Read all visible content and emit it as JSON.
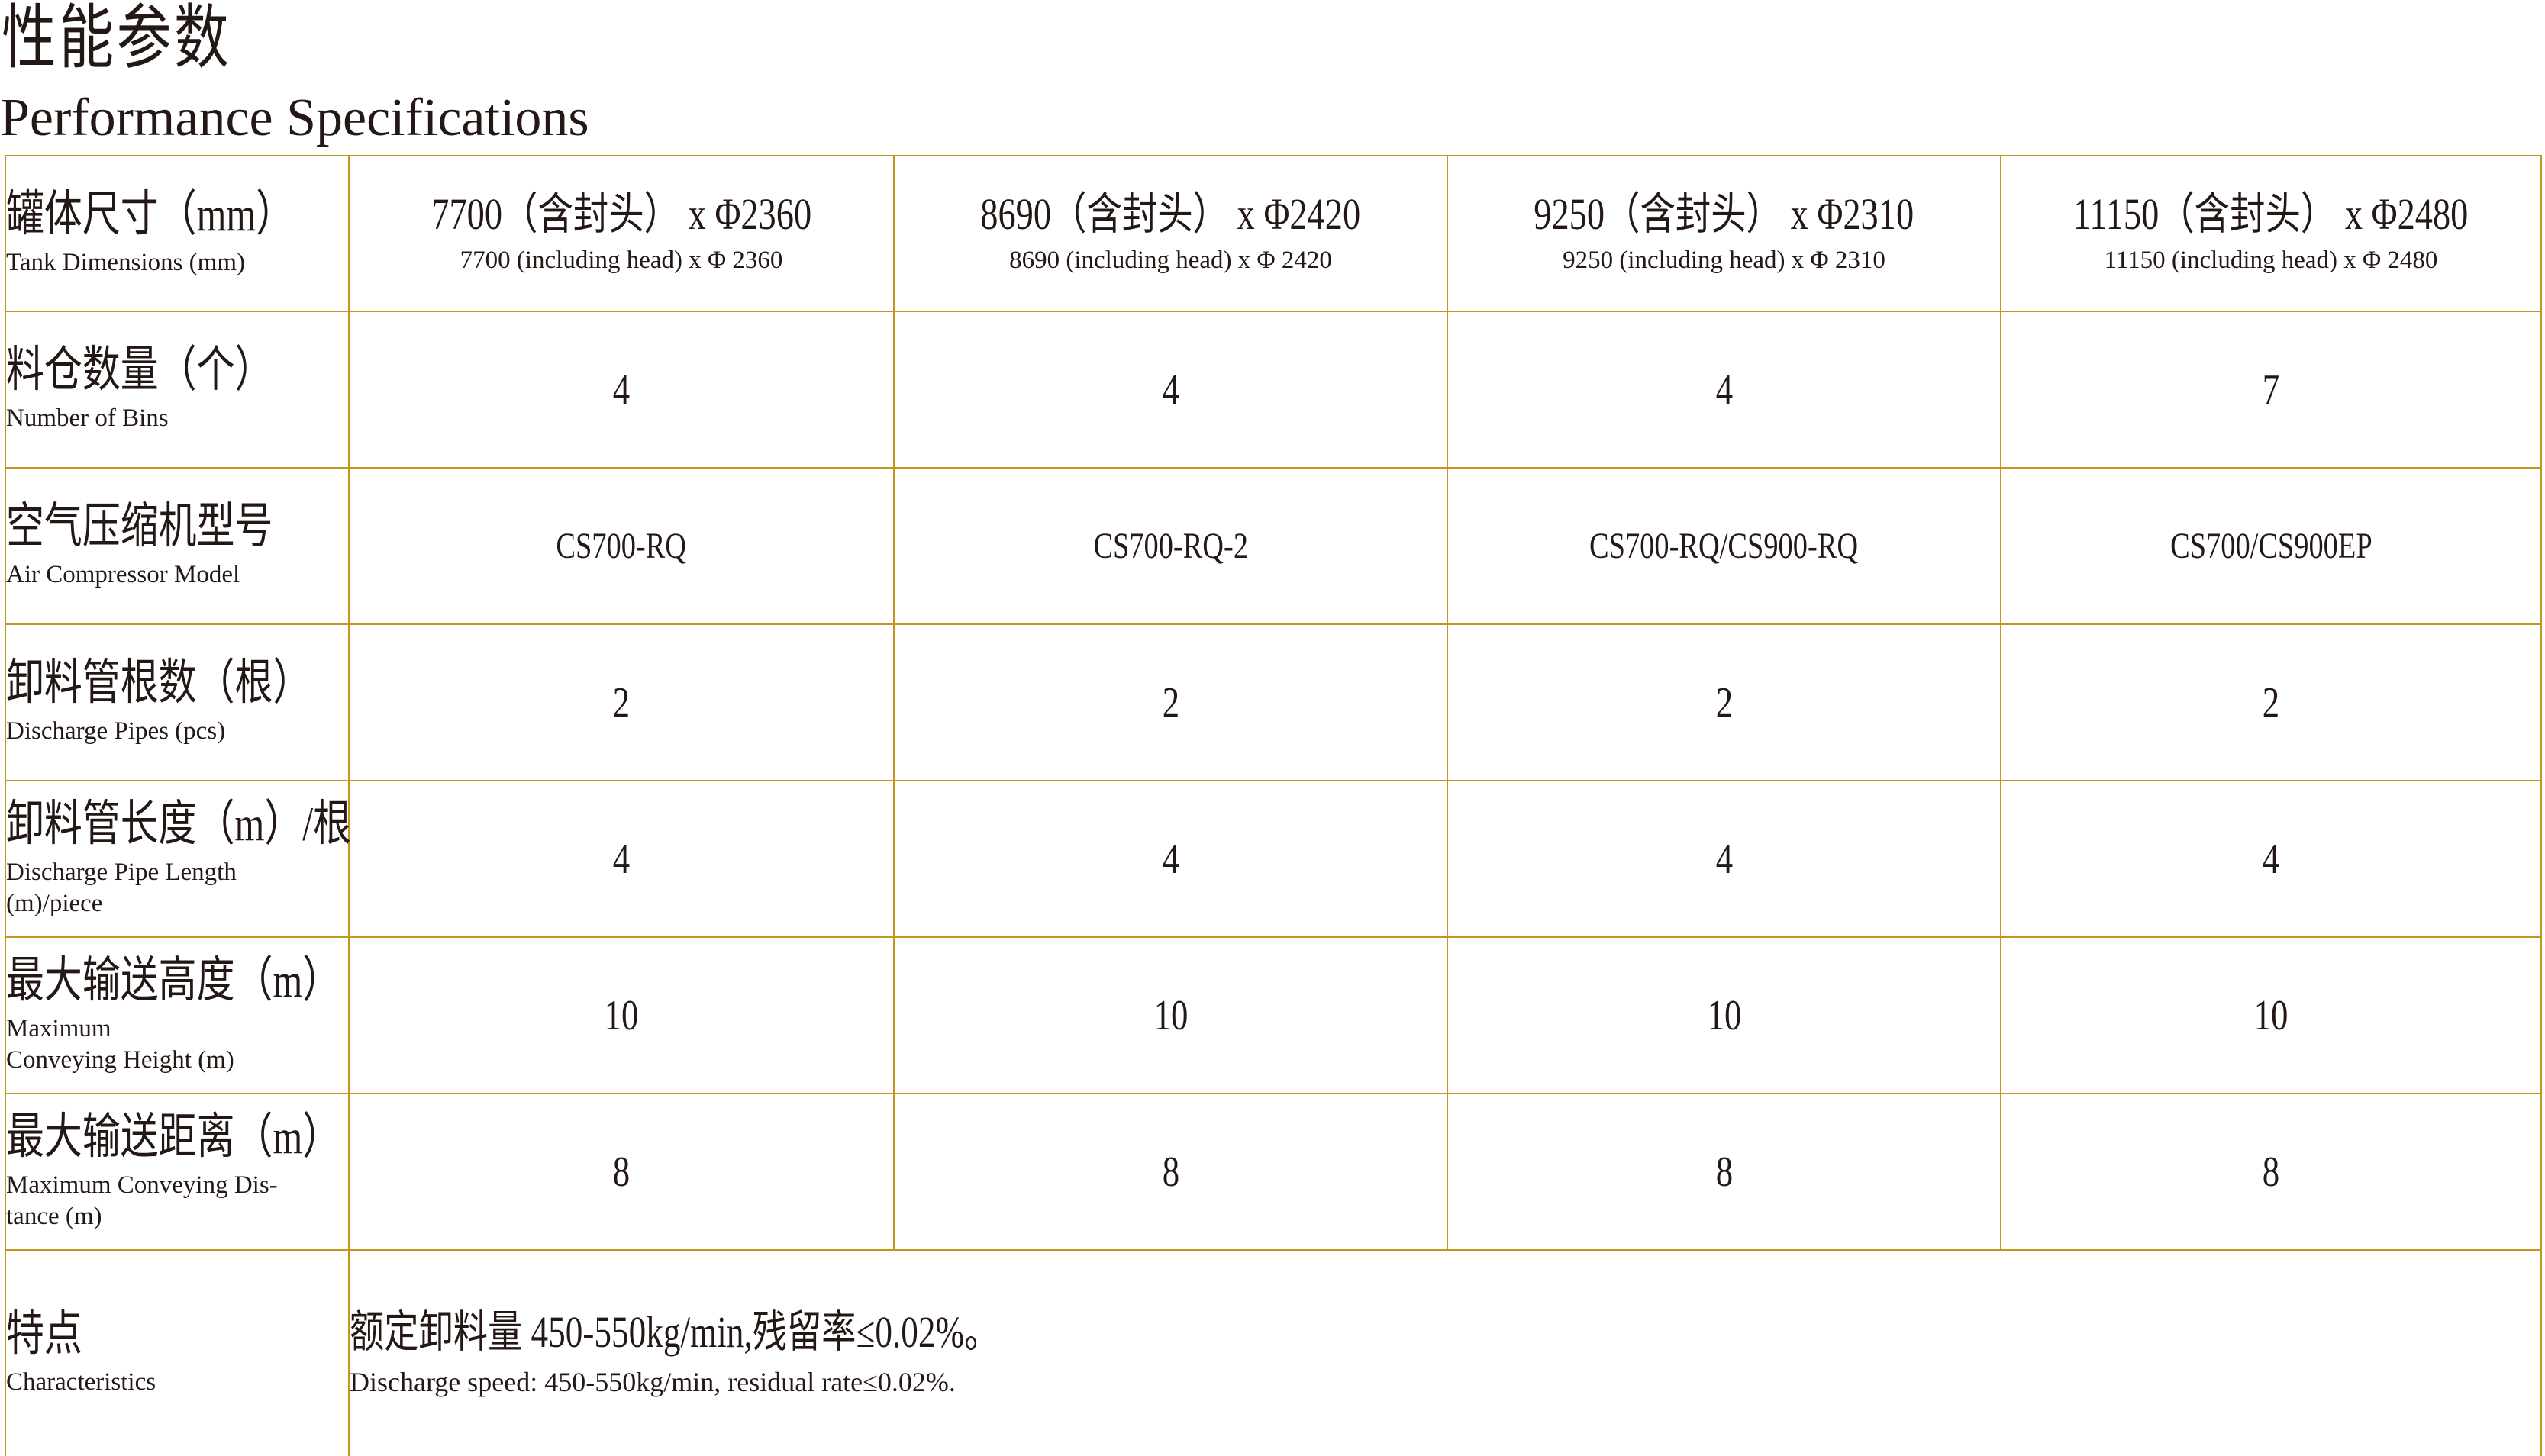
{
  "page": {
    "title_cn": "性能参数",
    "title_en": "Performance Specifications"
  },
  "colors": {
    "border": "#C6951E",
    "text": "#231815"
  },
  "table": {
    "rows": [
      {
        "label_cn": "罐体尺寸（mm）",
        "label_en": "Tank Dimensions (mm)",
        "cells": [
          {
            "cn": "7700（含封头） x Φ2360",
            "en": "7700 (including head) x Φ 2360"
          },
          {
            "cn": "8690（含封头） x Φ2420",
            "en": "8690 (including head) x Φ 2420"
          },
          {
            "cn": "9250（含封头） x Φ2310",
            "en": "9250 (including head) x Φ 2310"
          },
          {
            "cn": "11150（含封头） x Φ2480",
            "en": "11150 (including head) x Φ 2480"
          }
        ]
      },
      {
        "label_cn": "料仓数量（个）",
        "label_en": "Number of Bins",
        "cells": [
          "4",
          "4",
          "4",
          "7"
        ]
      },
      {
        "label_cn": "空气压缩机型号",
        "label_en": "Air Compressor Model",
        "model": true,
        "cells": [
          "CS700-RQ",
          "CS700-RQ-2",
          "CS700-RQ/CS900-RQ",
          "CS700/CS900EP"
        ]
      },
      {
        "label_cn": "卸料管根数（根）",
        "label_en": "Discharge Pipes (pcs)",
        "cells": [
          "2",
          "2",
          "2",
          "2"
        ]
      },
      {
        "label_cn": "卸料管长度（m）/根",
        "label_en": "Discharge Pipe Length\n(m)/piece",
        "cells": [
          "4",
          "4",
          "4",
          "4"
        ]
      },
      {
        "label_cn": "最大输送高度（m）",
        "label_en": "Maximum\nConveying Height (m)",
        "cells": [
          "10",
          "10",
          "10",
          "10"
        ]
      },
      {
        "label_cn": "最大输送距离（m）",
        "label_en": "Maximum Conveying Dis-\ntance (m)",
        "cells": [
          "8",
          "8",
          "8",
          "8"
        ]
      }
    ],
    "feature_row": {
      "label_cn": "特点",
      "label_en": "Characteristics",
      "value_cn": "额定卸料量 450-550kg/min,残留率≤0.02%。",
      "value_en": "Discharge speed: 450-550kg/min, residual rate≤0.02%."
    }
  }
}
